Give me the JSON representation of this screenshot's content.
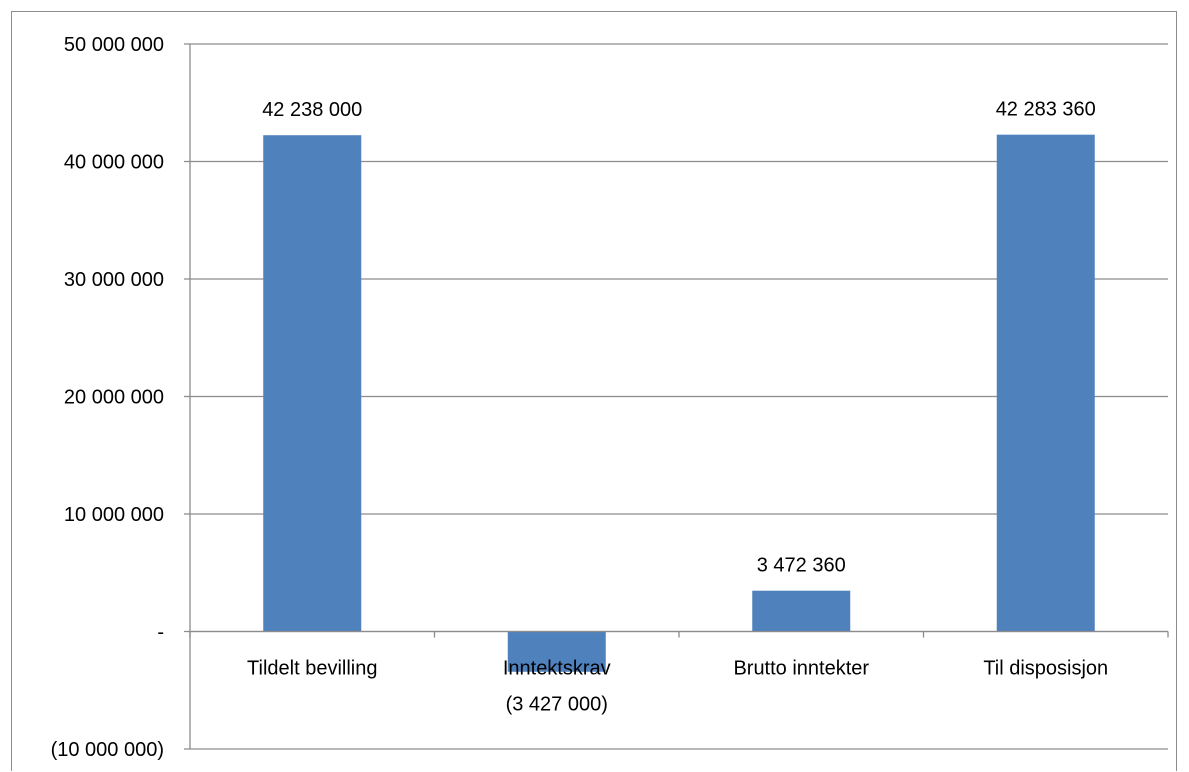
{
  "chart_data": {
    "type": "bar",
    "categories": [
      "Tildelt bevilling",
      "Inntektskrav",
      "Brutto inntekter",
      "Til disposisjon"
    ],
    "values": [
      42238000,
      -3427000,
      3472360,
      42283360
    ],
    "data_labels": [
      "42 238 000",
      "(3 427 000)",
      "3 472 360",
      "42 283 360"
    ],
    "ylim": [
      -10000000,
      50000000
    ],
    "y_ticks": [
      50000000,
      40000000,
      30000000,
      20000000,
      10000000,
      0,
      -10000000
    ],
    "y_tick_labels": [
      "50 000 000",
      "40 000 000",
      "30 000 000",
      "20 000 000",
      "10 000 000",
      "-",
      "(10 000 000)"
    ],
    "title": "",
    "xlabel": "",
    "ylabel": "",
    "grid": true,
    "legend": "none",
    "bar_color": "#4f81bd",
    "grid_color": "#8c8c8c"
  }
}
